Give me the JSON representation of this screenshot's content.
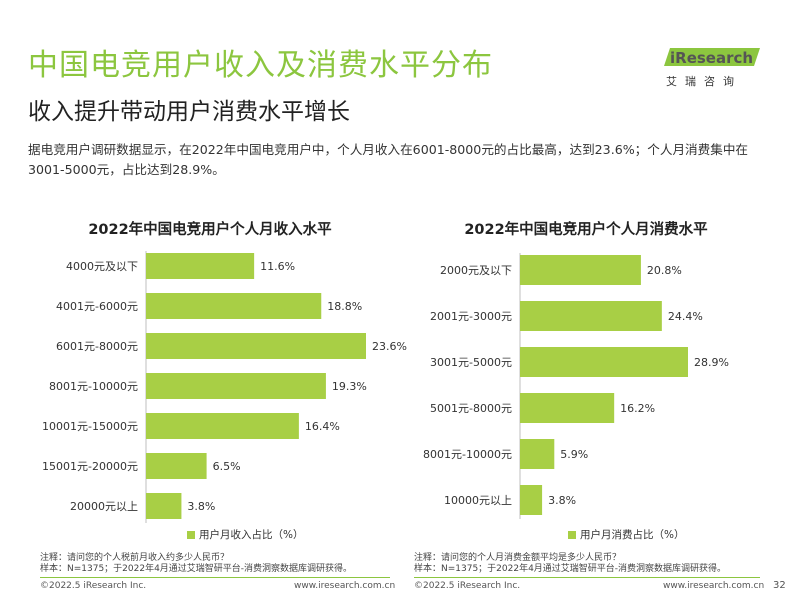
{
  "header": {
    "title": "中国电竞用户收入及消费水平分布",
    "subtitle": "收入提升带动用户消费水平增长",
    "description": "据电竞用户调研数据显示，在2022年中国电竞用户中，个人月收入在6001-8000元的占比最高，达到23.6%；个人月消费集中在3001-5000元，占比达到28.9%。"
  },
  "logo": {
    "brand": "iResearch",
    "sub": "艾瑞咨询",
    "colors": {
      "green": "#8cc63f",
      "dark": "#555555"
    }
  },
  "colors": {
    "bar": "#a8cf45",
    "title": "#8cc63f",
    "footer_line": "#8cc63f"
  },
  "chart_data": [
    {
      "type": "bar",
      "orientation": "horizontal",
      "title": "2022年中国电竞用户个人月收入水平",
      "categories": [
        "4000元及以下",
        "4001元-6000元",
        "6001元-8000元",
        "8001元-10000元",
        "10001元-15000元",
        "15001元-20000元",
        "20000元以上"
      ],
      "series": [
        {
          "name": "用户月收入占比（%）",
          "values": [
            11.6,
            18.8,
            23.6,
            19.3,
            16.4,
            6.5,
            3.8
          ]
        }
      ],
      "value_labels": [
        "11.6%",
        "18.8%",
        "23.6%",
        "19.3%",
        "16.4%",
        "6.5%",
        "3.8%"
      ],
      "legend": "bottom",
      "grid": false
    },
    {
      "type": "bar",
      "orientation": "horizontal",
      "title": "2022年中国电竞用户个人月消费水平",
      "categories": [
        "2000元及以下",
        "2001元-3000元",
        "3001元-5000元",
        "5001元-8000元",
        "8001元-10000元",
        "10000元以上"
      ],
      "series": [
        {
          "name": "用户月消费占比（%）",
          "values": [
            20.8,
            24.4,
            28.9,
            16.2,
            5.9,
            3.8
          ]
        }
      ],
      "value_labels": [
        "20.8%",
        "24.4%",
        "28.9%",
        "16.2%",
        "5.9%",
        "3.8%"
      ],
      "legend": "bottom",
      "grid": false
    }
  ],
  "notes": {
    "left": [
      "注释：请问您的个人税前月收入约多少人民币？",
      "样本：N=1375；于2022年4月通过艾瑞智研平台-消费洞察数据库调研获得。"
    ],
    "right": [
      "注释：请问您的个人月消费金额平均是多少人民币？",
      "样本：N=1375；于2022年4月通过艾瑞智研平台-消费洞察数据库调研获得。"
    ]
  },
  "footer": {
    "copyright": "©2022.5 iResearch Inc.",
    "url": "www.iresearch.com.cn",
    "page": "32"
  }
}
